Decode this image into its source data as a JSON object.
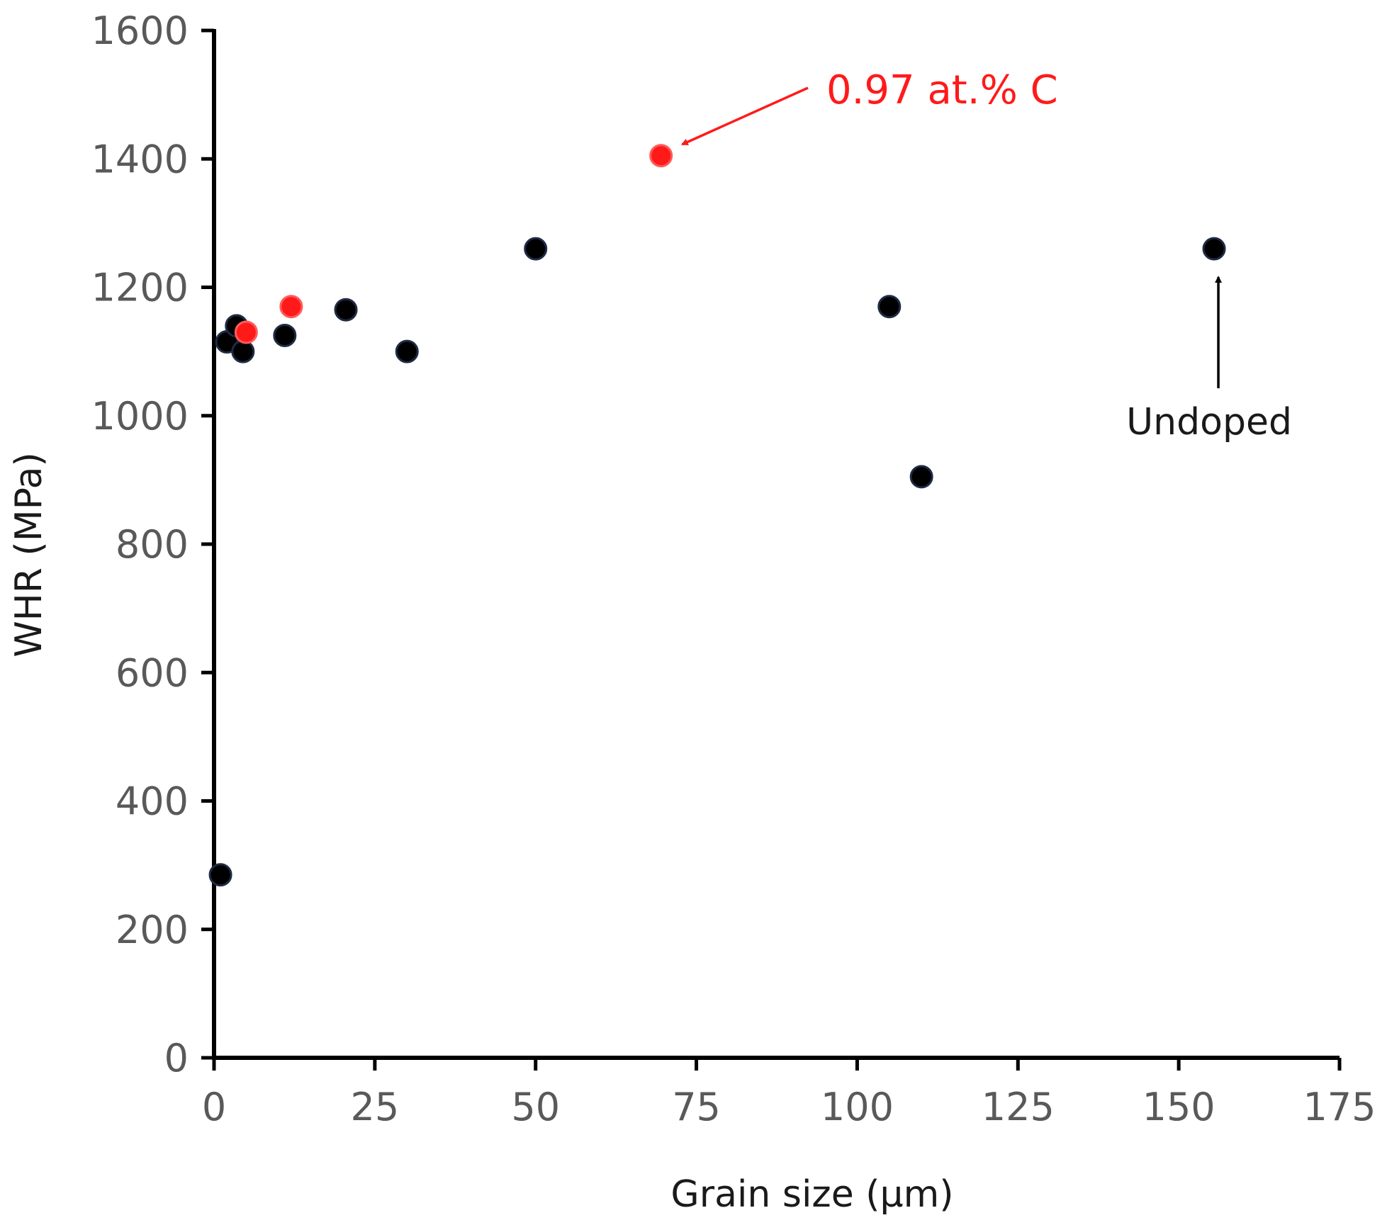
{
  "chart_data": {
    "type": "scatter",
    "title": "",
    "xlabel": "Grain size (μm)",
    "ylabel": "WHR (MPa)",
    "xlim": [
      0,
      175
    ],
    "ylim": [
      0,
      1600
    ],
    "xticks": [
      0,
      25,
      50,
      75,
      100,
      125,
      150,
      175
    ],
    "yticks": [
      0,
      200,
      400,
      600,
      800,
      1000,
      1200,
      1400,
      1600
    ],
    "grid": false,
    "legend": "none",
    "series": [
      {
        "color": "#000000",
        "points": [
          {
            "x": 1,
            "y": 285
          },
          {
            "x": 2,
            "y": 1115
          },
          {
            "x": 3.5,
            "y": 1140
          },
          {
            "x": 4.5,
            "y": 1100
          },
          {
            "x": 11,
            "y": 1125
          },
          {
            "x": 20.5,
            "y": 1165
          },
          {
            "x": 30,
            "y": 1100
          },
          {
            "x": 50,
            "y": 1260
          },
          {
            "x": 105,
            "y": 1170
          },
          {
            "x": 110,
            "y": 905
          },
          {
            "x": 155.5,
            "y": 1260
          }
        ]
      },
      {
        "color": "#ff1a1a",
        "points": [
          {
            "x": 5,
            "y": 1130
          },
          {
            "x": 12,
            "y": 1170
          },
          {
            "x": 69.5,
            "y": 1405
          }
        ]
      }
    ],
    "annotations": [
      {
        "text": "0.97 at.% C",
        "color": "#ff1a1a",
        "target": {
          "x": 69.5,
          "y": 1405
        }
      },
      {
        "text": "Undoped",
        "color": "#1a1a1a",
        "target": {
          "x": 155.5,
          "y": 1260
        }
      }
    ]
  }
}
